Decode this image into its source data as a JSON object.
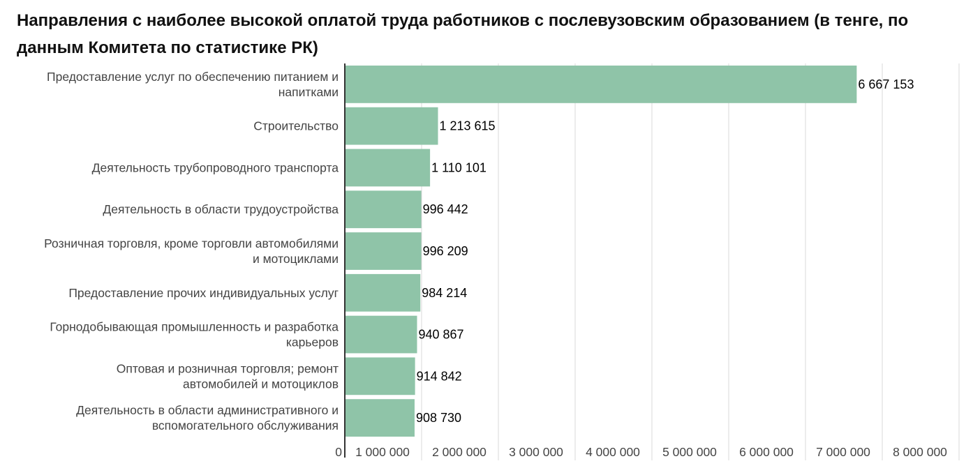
{
  "chart_data": {
    "type": "bar",
    "orientation": "horizontal",
    "title": "Направления с наиболее высокой оплатой труда работников с послевузовским образованием (в тенге, по данным Комитета по статистике РК)",
    "xlabel": "",
    "ylabel": "",
    "categories": [
      [
        "Предоставление услуг по обеспечению питанием и",
        "напитками"
      ],
      [
        "Строительство"
      ],
      [
        "Деятельность трубопроводного транспорта"
      ],
      [
        "Деятельность в области трудоустройства"
      ],
      [
        "Розничная торговля, кроме торговли автомобилями",
        "и мотоциклами"
      ],
      [
        "Предоставление прочих индивидуальных услуг"
      ],
      [
        "Горнодобывающая промышленность и разработка",
        "карьеров"
      ],
      [
        "Оптовая и розничная торговля; ремонт",
        "автомобилей и мотоциклов"
      ],
      [
        "Деятельность в области административного и",
        "вспомогательного обслуживания"
      ]
    ],
    "values": [
      6667153,
      1213615,
      1110101,
      996442,
      996209,
      984214,
      940867,
      914842,
      908730
    ],
    "value_labels": [
      "6 667 153",
      "1 213 615",
      "1 110 101",
      "996 442",
      "996 209",
      "984 214",
      "940 867",
      "914 842",
      "908 730"
    ],
    "xlim": [
      0,
      8000000
    ],
    "x_ticks": [
      0,
      1000000,
      2000000,
      3000000,
      4000000,
      5000000,
      6000000,
      7000000,
      8000000
    ],
    "x_tick_labels": [
      "0",
      "1 000 000",
      "2 000 000",
      "3 000 000",
      "4 000 000",
      "5 000 000",
      "6 000 000",
      "7 000 000",
      "8 000 000"
    ],
    "grid": true,
    "bar_color": "#8fc4a8",
    "grid_color": "#d9d9d9",
    "axis_color": "#333333"
  }
}
